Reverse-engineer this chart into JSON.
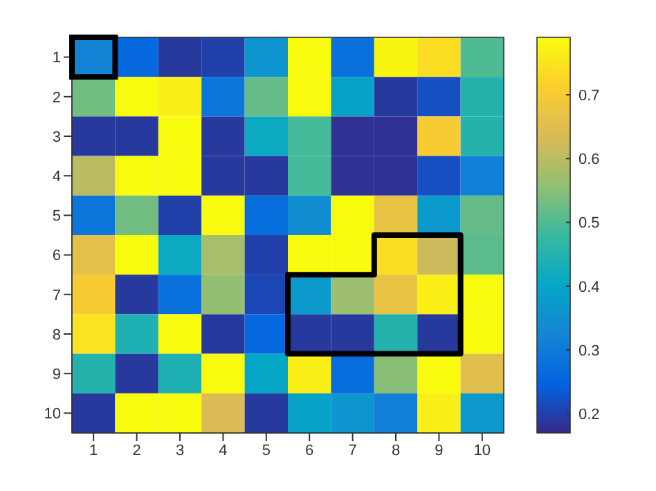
{
  "chart_data": {
    "type": "heatmap",
    "categories": [
      "1",
      "2",
      "3",
      "4",
      "5",
      "6",
      "7",
      "8",
      "9",
      "10"
    ],
    "y_categories": [
      "1",
      "2",
      "3",
      "4",
      "5",
      "6",
      "7",
      "8",
      "9",
      "10"
    ],
    "cells": [
      [
        0.32,
        0.26,
        0.19,
        0.2,
        0.36,
        0.79,
        0.28,
        0.78,
        0.74,
        0.5
      ],
      [
        0.53,
        0.79,
        0.77,
        0.29,
        0.52,
        0.79,
        0.39,
        0.19,
        0.22,
        0.45
      ],
      [
        0.19,
        0.19,
        0.79,
        0.19,
        0.41,
        0.49,
        0.18,
        0.18,
        0.7,
        0.45
      ],
      [
        0.6,
        0.79,
        0.79,
        0.19,
        0.19,
        0.49,
        0.18,
        0.18,
        0.22,
        0.31
      ],
      [
        0.29,
        0.53,
        0.2,
        0.79,
        0.27,
        0.34,
        0.79,
        0.67,
        0.37,
        0.52
      ],
      [
        0.66,
        0.79,
        0.41,
        0.58,
        0.2,
        0.79,
        0.79,
        0.74,
        0.62,
        0.51
      ],
      [
        0.7,
        0.19,
        0.28,
        0.56,
        0.21,
        0.37,
        0.57,
        0.67,
        0.77,
        0.79
      ],
      [
        0.75,
        0.44,
        0.79,
        0.19,
        0.26,
        0.19,
        0.19,
        0.45,
        0.19,
        0.79
      ],
      [
        0.45,
        0.19,
        0.44,
        0.79,
        0.4,
        0.77,
        0.27,
        0.55,
        0.79,
        0.65
      ],
      [
        0.19,
        0.79,
        0.79,
        0.64,
        0.19,
        0.39,
        0.36,
        0.31,
        0.77,
        0.37
      ]
    ],
    "clim": [
      0.17,
      0.79
    ],
    "cticks": [
      0.2,
      0.3,
      0.4,
      0.5,
      0.6,
      0.7
    ]
  }
}
